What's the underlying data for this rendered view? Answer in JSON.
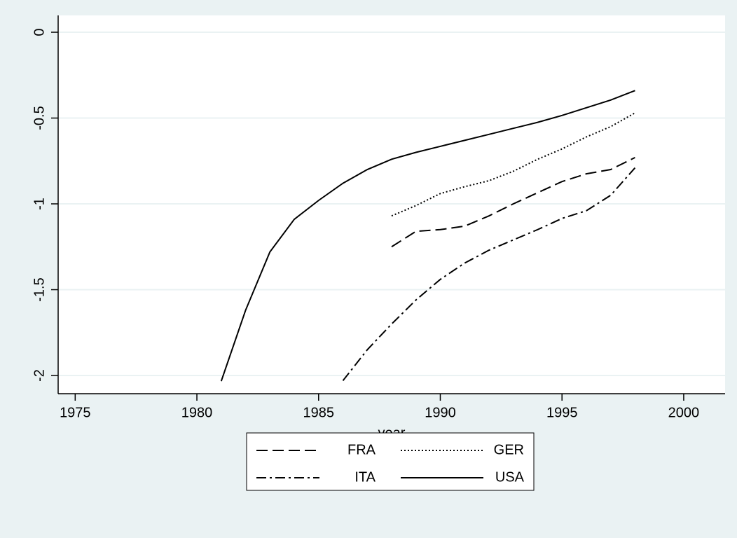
{
  "chart_data": {
    "type": "line",
    "x_label": "year",
    "x": [
      1981,
      1982,
      1983,
      1984,
      1985,
      1986,
      1987,
      1988,
      1989,
      1990,
      1991,
      1992,
      1993,
      1994,
      1995,
      1996,
      1997,
      1998
    ],
    "series": [
      {
        "name": "FRA",
        "color": "#000000",
        "line_style": "dash",
        "values": [
          null,
          null,
          null,
          null,
          null,
          null,
          null,
          -1.25,
          -1.16,
          -1.15,
          -1.13,
          -1.07,
          -1.0,
          -0.935,
          -0.87,
          -0.825,
          -0.8,
          -0.73
        ]
      },
      {
        "name": "GER",
        "color": "#000000",
        "line_style": "dot",
        "values": [
          null,
          null,
          null,
          null,
          null,
          null,
          null,
          -1.07,
          -1.01,
          -0.94,
          -0.9,
          -0.865,
          -0.81,
          -0.74,
          -0.68,
          -0.61,
          -0.55,
          -0.47
        ]
      },
      {
        "name": "ITA",
        "color": "#000000",
        "line_style": "dashdot",
        "values": [
          null,
          null,
          null,
          null,
          null,
          -2.03,
          -1.85,
          -1.7,
          -1.56,
          -1.44,
          -1.345,
          -1.27,
          -1.21,
          -1.15,
          -1.085,
          -1.04,
          -0.95,
          -0.79
        ]
      },
      {
        "name": "USA",
        "color": "#000000",
        "line_style": "solid",
        "values": [
          -2.033,
          -1.62,
          -1.28,
          -1.09,
          -0.98,
          -0.88,
          -0.8,
          -0.74,
          -0.7,
          -0.665,
          -0.63,
          -0.595,
          -0.56,
          -0.525,
          -0.485,
          -0.44,
          -0.395,
          -0.34
        ]
      }
    ],
    "xlim": [
      1974.3,
      2001.7
    ],
    "xticks": [
      1975,
      1980,
      1985,
      1990,
      1995,
      2000
    ],
    "ylim": [
      -2.106,
      0.098
    ],
    "yticks": [
      0,
      -0.5,
      -1,
      -1.5,
      -2
    ],
    "grid": true
  }
}
